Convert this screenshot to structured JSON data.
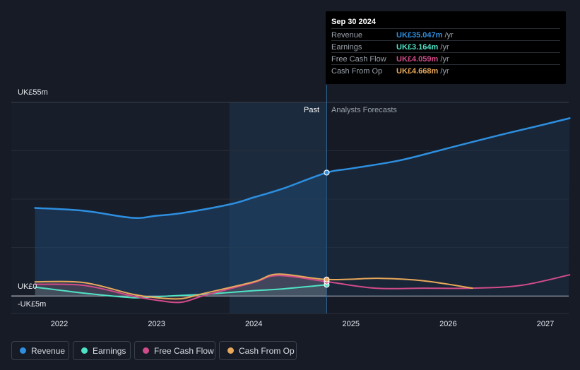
{
  "tooltip": {
    "date": "Sep 30 2024",
    "rows": [
      {
        "label": "Revenue",
        "value": "UK£35.047m",
        "unit": "/yr",
        "color": "#2e8fe0"
      },
      {
        "label": "Earnings",
        "value": "UK£3.164m",
        "unit": "/yr",
        "color": "#4fe3c6"
      },
      {
        "label": "Free Cash Flow",
        "value": "UK£4.059m",
        "unit": "/yr",
        "color": "#d14b8a"
      },
      {
        "label": "Cash From Op",
        "value": "UK£4.668m",
        "unit": "/yr",
        "color": "#e7a85a"
      }
    ]
  },
  "labels": {
    "past": "Past",
    "forecast": "Analysts Forecasts"
  },
  "legend": [
    {
      "label": "Revenue",
      "color": "#2e8fe0"
    },
    {
      "label": "Earnings",
      "color": "#4fe3c6"
    },
    {
      "label": "Free Cash Flow",
      "color": "#d14b8a"
    },
    {
      "label": "Cash From Op",
      "color": "#e7a85a"
    }
  ],
  "chart_data": {
    "type": "line",
    "ylim": [
      -5,
      55
    ],
    "y_ticks": [
      "UK£55m",
      "UK£0",
      "-UK£5m"
    ],
    "x_ticks": [
      "2022",
      "2023",
      "2024",
      "2025",
      "2026",
      "2027"
    ],
    "past_end": 2024.75,
    "highlight_start": 2023.75,
    "series": [
      {
        "name": "Revenue",
        "color": "#2e8fe0",
        "x": [
          2021.75,
          2022.25,
          2022.75,
          2023.0,
          2023.25,
          2023.75,
          2024.0,
          2024.3,
          2024.75,
          2025.0,
          2025.5,
          2026.0,
          2026.5,
          2027.0,
          2027.25
        ],
        "y": [
          25.0,
          24.2,
          22.2,
          22.8,
          23.5,
          26.0,
          28.0,
          30.5,
          35.047,
          36.2,
          38.5,
          42.0,
          45.5,
          48.8,
          50.5
        ]
      },
      {
        "name": "Earnings",
        "color": "#4fe3c6",
        "x": [
          2021.75,
          2022.25,
          2022.75,
          2023.0,
          2023.5,
          2024.0,
          2024.3,
          2024.75
        ],
        "y": [
          2.5,
          0.8,
          -0.5,
          -0.2,
          0.5,
          1.5,
          2.0,
          3.164
        ]
      },
      {
        "name": "Free Cash Flow",
        "color": "#d14b8a",
        "x": [
          2021.75,
          2022.25,
          2022.75,
          2023.0,
          2023.25,
          2023.5,
          2024.0,
          2024.25,
          2024.75,
          2025.25,
          2025.75,
          2026.25,
          2026.75,
          2027.25
        ],
        "y": [
          3.3,
          3.0,
          0.0,
          -1.2,
          -1.8,
          0.2,
          3.8,
          5.8,
          4.059,
          2.2,
          2.2,
          2.2,
          3.0,
          6.0
        ]
      },
      {
        "name": "Cash From Op",
        "color": "#e7a85a",
        "x": [
          2021.75,
          2022.25,
          2022.75,
          2023.0,
          2023.25,
          2023.5,
          2024.0,
          2024.25,
          2024.75,
          2025.3,
          2025.75,
          2026.25
        ],
        "y": [
          4.0,
          3.8,
          0.5,
          -0.5,
          -0.8,
          0.8,
          4.0,
          6.2,
          4.668,
          5.0,
          4.3,
          2.2
        ]
      }
    ]
  }
}
